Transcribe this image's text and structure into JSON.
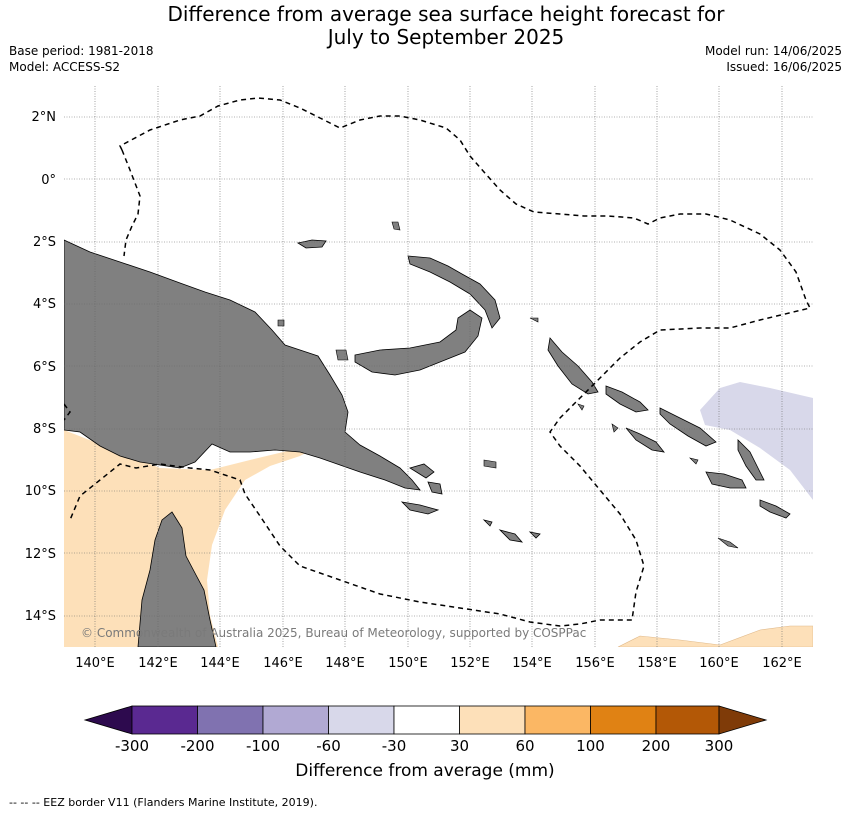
{
  "header": {
    "title_line1": "Difference from average sea surface height forecast for",
    "title_line2": "July to September 2025",
    "base_period": "Base period: 1981-2018",
    "model": "Model: ACCESS-S2",
    "model_run": "Model run: 14/06/2025",
    "issued": "Issued: 16/06/2025"
  },
  "map": {
    "lon_range": [
      139,
      163
    ],
    "lat_range": [
      -15,
      3
    ],
    "lon_ticks": [
      "140°E",
      "142°E",
      "144°E",
      "146°E",
      "148°E",
      "150°E",
      "152°E",
      "154°E",
      "156°E",
      "158°E",
      "160°E",
      "162°E"
    ],
    "lat_ticks": [
      "2°N",
      "0°",
      "2°S",
      "4°S",
      "6°S",
      "8°S",
      "10°S",
      "12°S",
      "14°S"
    ],
    "land_color": "#808080",
    "ocean_default": "#ffffff",
    "copyright": "© Commonwealth of Australia 2025, Bureau of Meteorology, supported by COSPPac",
    "anomaly_regions": [
      {
        "name": "gulf-of-papua-coral-sea-positive",
        "category": "30 to 60",
        "color": "#fde0b9"
      },
      {
        "name": "solomon-sea-east-negative",
        "category": "-60 to -30",
        "color": "#d8d8ea"
      },
      {
        "name": "south-edge-positive",
        "category": "30 to 60",
        "color": "#fde0b9"
      }
    ]
  },
  "colorbar": {
    "label": "Difference from average (mm)",
    "ticks": [
      "-300",
      "-200",
      "-100",
      "-60",
      "-30",
      "30",
      "60",
      "100",
      "200",
      "300"
    ],
    "colors": [
      "#2d0a4e",
      "#5a2991",
      "#8072b0",
      "#b1a9d3",
      "#d8d8ea",
      "#ffffff",
      "#fde0b9",
      "#fbb764",
      "#e08214",
      "#b35806",
      "#7f3b08"
    ]
  },
  "footnote": "--  --  -- EEZ border V11 (Flanders Marine Institute, 2019)."
}
